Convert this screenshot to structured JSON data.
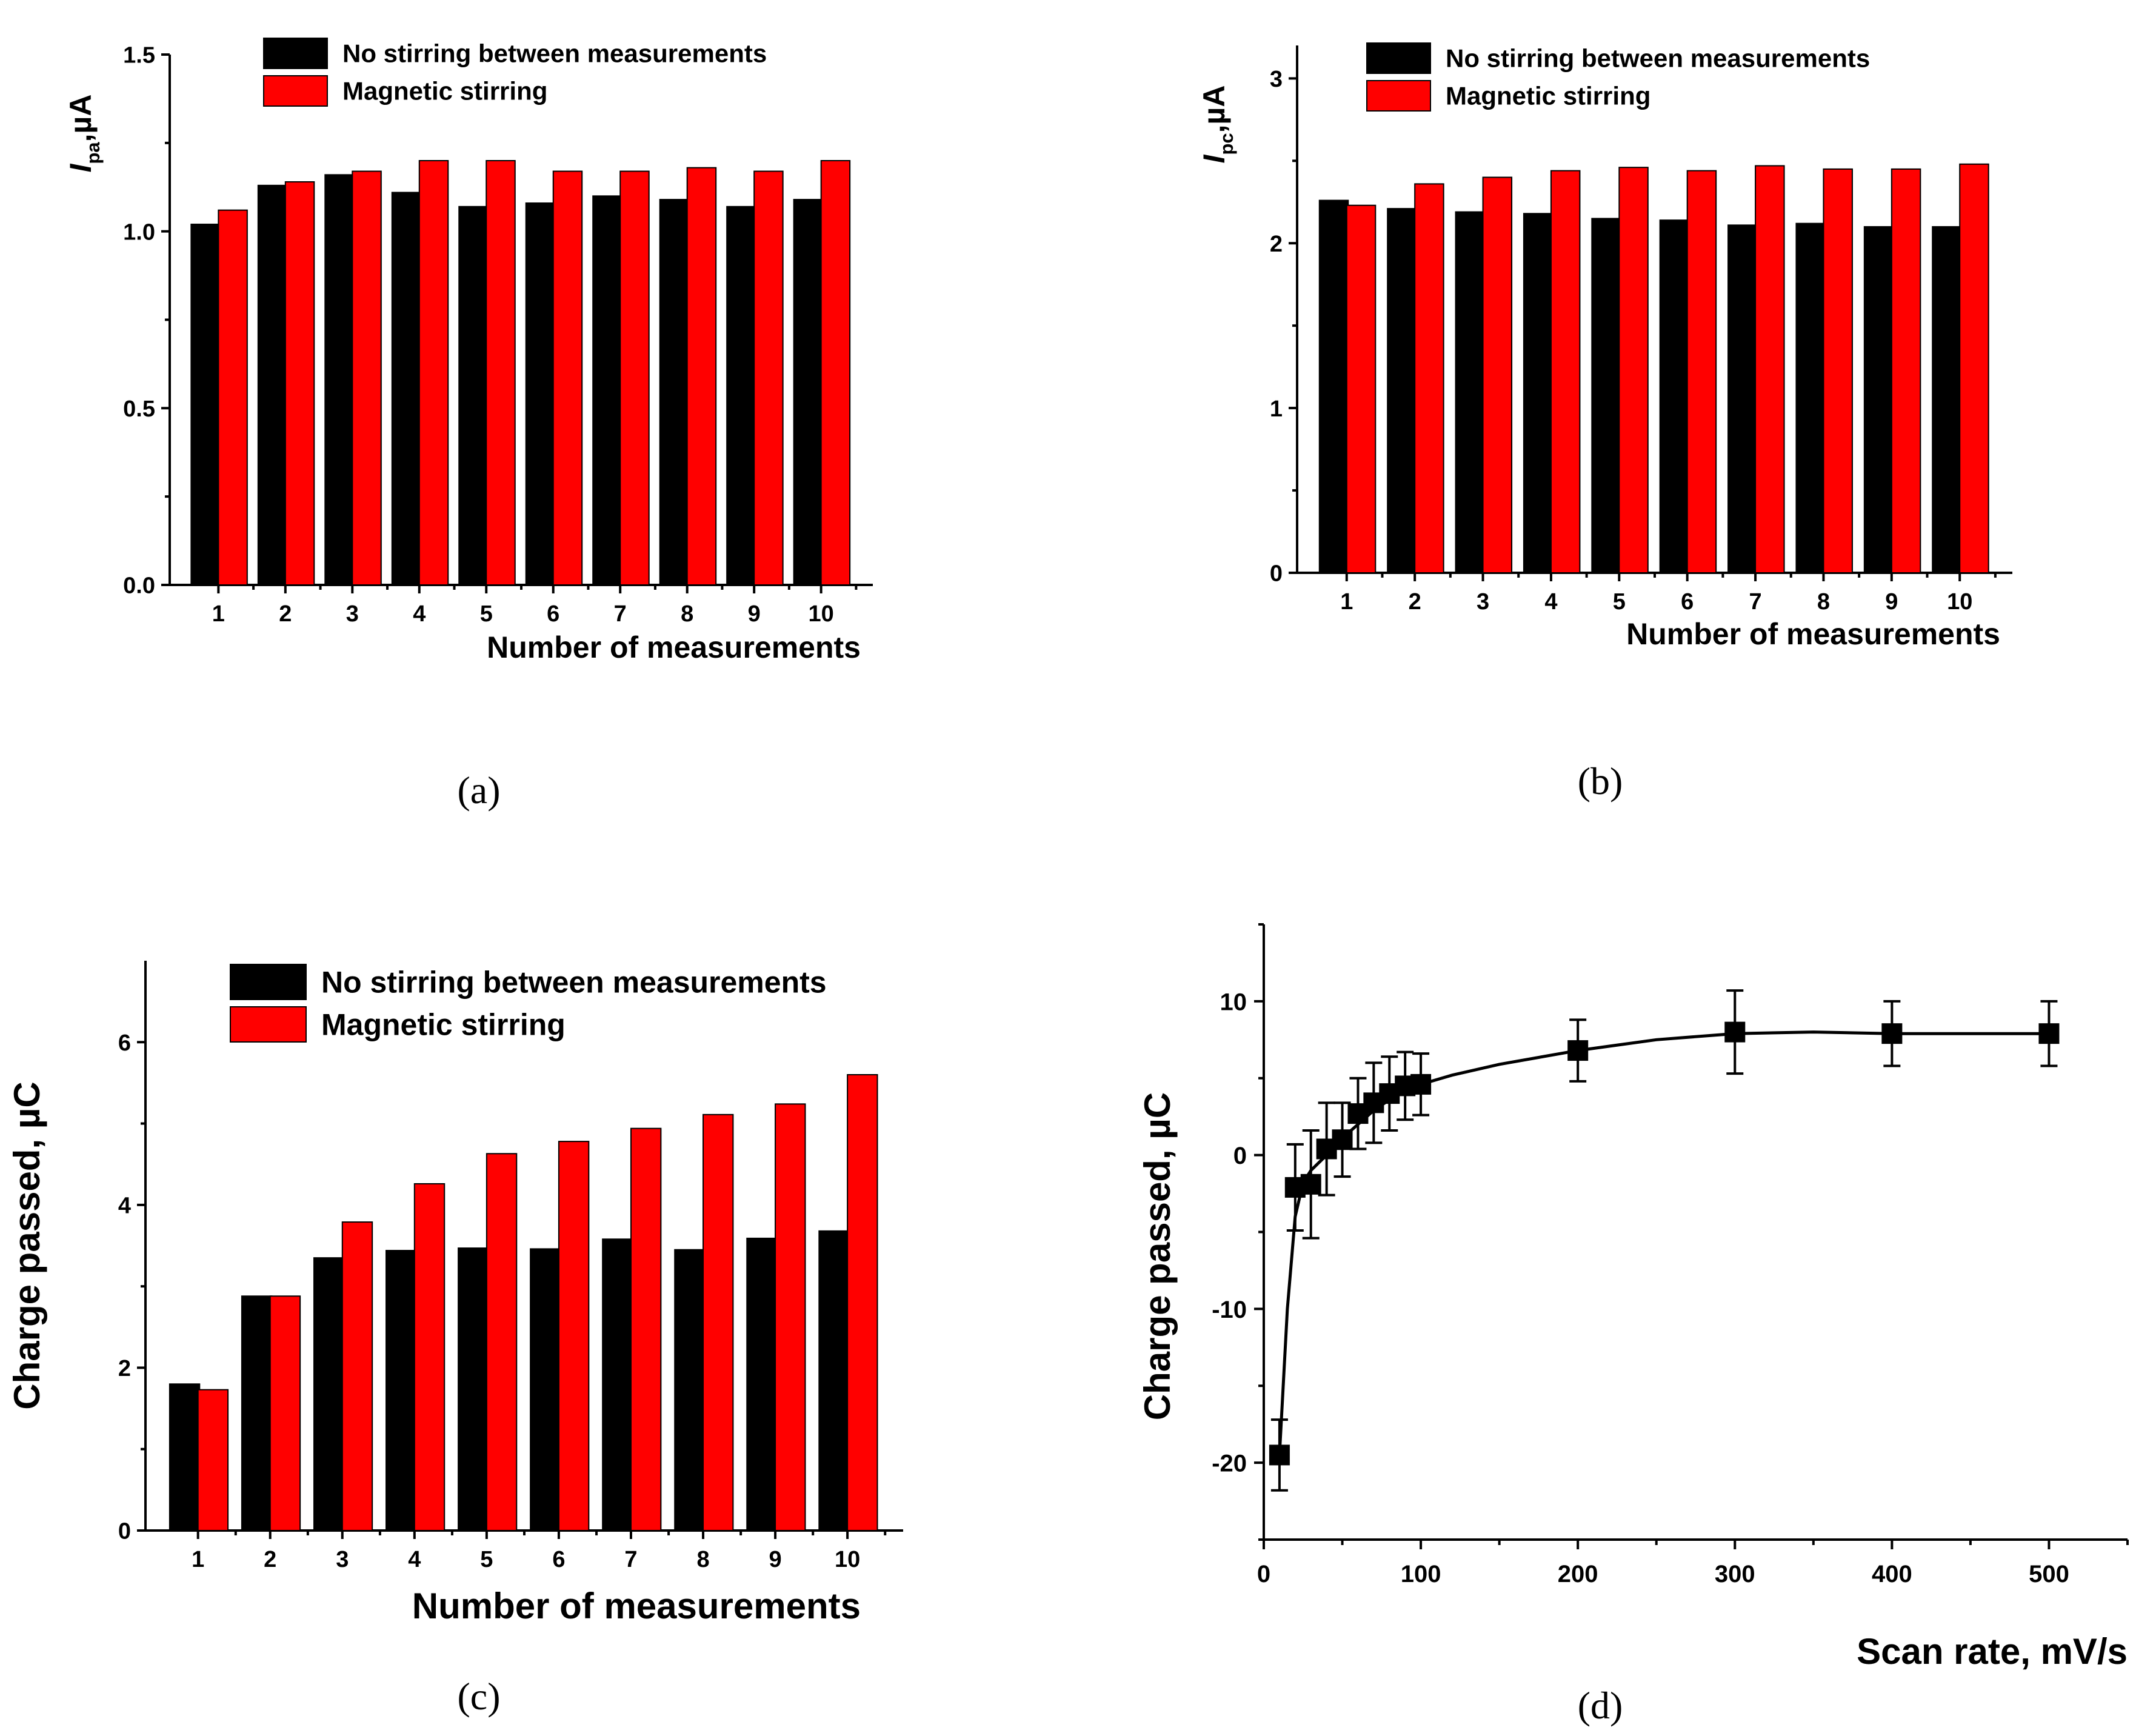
{
  "colors": {
    "series_no_stirring": "#000000",
    "series_magnetic": "#ff0000",
    "axis": "#000000"
  },
  "chart_data": [
    {
      "id": "a",
      "type": "bar",
      "panel_label": "(a)",
      "ylabel_main": "I",
      "ylabel_sub": "pa",
      "ylabel_unit": ",µA",
      "xlabel": "Number of measurements",
      "categories": [
        "1",
        "2",
        "3",
        "4",
        "5",
        "6",
        "7",
        "8",
        "9",
        "10"
      ],
      "ylim": [
        0,
        1.5
      ],
      "yticks": [
        0.0,
        0.5,
        1.0,
        1.5
      ],
      "ytick_labels": [
        "0.0",
        "0.5",
        "1.0",
        "1.5"
      ],
      "legend": [
        "No stirring between measurements",
        "Magnetic stirring"
      ],
      "series": [
        {
          "name": "No stirring between measurements",
          "values": [
            1.02,
            1.13,
            1.16,
            1.11,
            1.07,
            1.08,
            1.1,
            1.09,
            1.07,
            1.09
          ]
        },
        {
          "name": "Magnetic stirring",
          "values": [
            1.06,
            1.14,
            1.17,
            1.2,
            1.2,
            1.17,
            1.17,
            1.18,
            1.17,
            1.2
          ]
        }
      ]
    },
    {
      "id": "b",
      "type": "bar",
      "panel_label": "(b)",
      "ylabel_main": "I",
      "ylabel_sub": "pc",
      "ylabel_unit": ",µA",
      "xlabel": "Number of measurements",
      "categories": [
        "1",
        "2",
        "3",
        "4",
        "5",
        "6",
        "7",
        "8",
        "9",
        "10"
      ],
      "ylim": [
        0,
        3.2
      ],
      "yticks": [
        0,
        1,
        2,
        3
      ],
      "ytick_labels": [
        "0",
        "1",
        "2",
        "3"
      ],
      "legend": [
        "No stirring between measurements",
        "Magnetic stirring"
      ],
      "series": [
        {
          "name": "No stirring between measurements",
          "values": [
            2.26,
            2.21,
            2.19,
            2.18,
            2.15,
            2.14,
            2.11,
            2.12,
            2.1,
            2.1
          ]
        },
        {
          "name": "Magnetic stirring",
          "values": [
            2.23,
            2.36,
            2.4,
            2.44,
            2.46,
            2.44,
            2.47,
            2.45,
            2.45,
            2.48
          ]
        }
      ]
    },
    {
      "id": "c",
      "type": "bar",
      "panel_label": "(c)",
      "ylabel": "Charge passed, µC",
      "xlabel": "Number of measurements",
      "categories": [
        "1",
        "2",
        "3",
        "4",
        "5",
        "6",
        "7",
        "8",
        "9",
        "10"
      ],
      "ylim": [
        0,
        7
      ],
      "yticks": [
        0,
        2,
        4,
        6
      ],
      "ytick_labels": [
        "0",
        "2",
        "4",
        "6"
      ],
      "legend": [
        "No stirring between measurements",
        "Magnetic stirring"
      ],
      "series": [
        {
          "name": "No stirring between measurements",
          "values": [
            1.8,
            2.88,
            3.35,
            3.44,
            3.47,
            3.46,
            3.58,
            3.45,
            3.59,
            3.68
          ]
        },
        {
          "name": "Magnetic stirring",
          "values": [
            1.73,
            2.88,
            3.79,
            4.26,
            4.63,
            4.78,
            4.94,
            5.11,
            5.24,
            5.6
          ]
        }
      ]
    },
    {
      "id": "d",
      "type": "scatter",
      "panel_label": "(d)",
      "ylabel": "Charge passed, µC",
      "xlabel": "Scan rate, mV/s",
      "xlim": [
        0,
        550
      ],
      "ylim": [
        -25,
        15
      ],
      "xticks": [
        0,
        100,
        200,
        300,
        400,
        500
      ],
      "xtick_labels": [
        "0",
        "100",
        "200",
        "300",
        "400",
        "500"
      ],
      "yticks": [
        -20,
        -10,
        0,
        10
      ],
      "ytick_labels": [
        "-20",
        "-10",
        "0",
        "10"
      ],
      "points": {
        "x": [
          10,
          20,
          30,
          40,
          50,
          60,
          70,
          80,
          90,
          100,
          200,
          300,
          400,
          500
        ],
        "y": [
          -19.5,
          -2.1,
          -1.9,
          0.4,
          1.0,
          2.7,
          3.4,
          4.0,
          4.5,
          4.6,
          6.8,
          8.0,
          7.9,
          7.9
        ],
        "err": [
          2.3,
          2.8,
          3.5,
          3.0,
          2.4,
          2.3,
          2.6,
          2.4,
          2.2,
          2.0,
          2.0,
          2.7,
          2.1,
          2.1
        ]
      },
      "fit_curve": {
        "x": [
          10,
          15,
          20,
          25,
          30,
          40,
          50,
          60,
          70,
          80,
          90,
          100,
          120,
          150,
          200,
          250,
          300,
          350,
          400,
          500
        ],
        "y": [
          -19.5,
          -10.0,
          -4.0,
          -1.8,
          -1.0,
          0.0,
          1.1,
          2.0,
          2.9,
          3.6,
          4.2,
          4.6,
          5.2,
          5.9,
          6.8,
          7.5,
          7.9,
          8.0,
          7.9,
          7.9
        ]
      }
    }
  ]
}
